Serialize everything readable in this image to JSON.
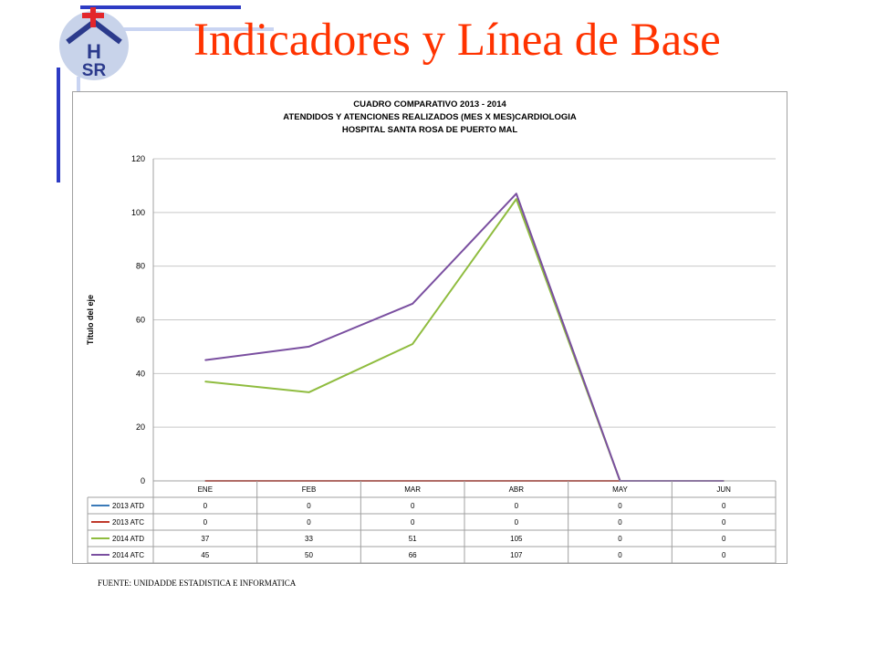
{
  "slide": {
    "title": "Indicadores y Línea de Base",
    "source_note": "FUENTE: UNIDADDE ESTADISTICA E INFORMATICA",
    "logo": {
      "icon": "hospital-house-logo",
      "text": "HSR",
      "accent_color": "#e3262b",
      "text_color": "#2b3a8c"
    },
    "title_color": "#ff3300"
  },
  "chart_data": {
    "type": "line",
    "title": [
      "CUADRO COMPARATIVO 2013 - 2014",
      "ATENDIDOS Y ATENCIONES  REALIZADOS (MES X MES)CARDIOLOGIA",
      "HOSPITAL SANTA ROSA DE PUERTO MAL"
    ],
    "ylabel": "Título del eje",
    "ylim": [
      0,
      120
    ],
    "yticks": [
      "0",
      "20",
      "40",
      "60",
      "80",
      "100",
      "120"
    ],
    "categories": [
      "ENE",
      "FEB",
      "MAR",
      "ABR",
      "MAY",
      "JUN"
    ],
    "grid": true,
    "legend": "data-table",
    "series": [
      {
        "name": "2013 ATD",
        "color": "#3a7ab8",
        "values": [
          0,
          0,
          0,
          0,
          0,
          0
        ]
      },
      {
        "name": "2013 ATC",
        "color": "#c0392b",
        "values": [
          0,
          0,
          0,
          0,
          0,
          0
        ]
      },
      {
        "name": "2014 ATD",
        "color": "#8fbc3f",
        "values": [
          37,
          33,
          51,
          105,
          0,
          0
        ]
      },
      {
        "name": "2014 ATC",
        "color": "#7a4fa0",
        "values": [
          45,
          50,
          66,
          107,
          0,
          0
        ]
      }
    ]
  }
}
